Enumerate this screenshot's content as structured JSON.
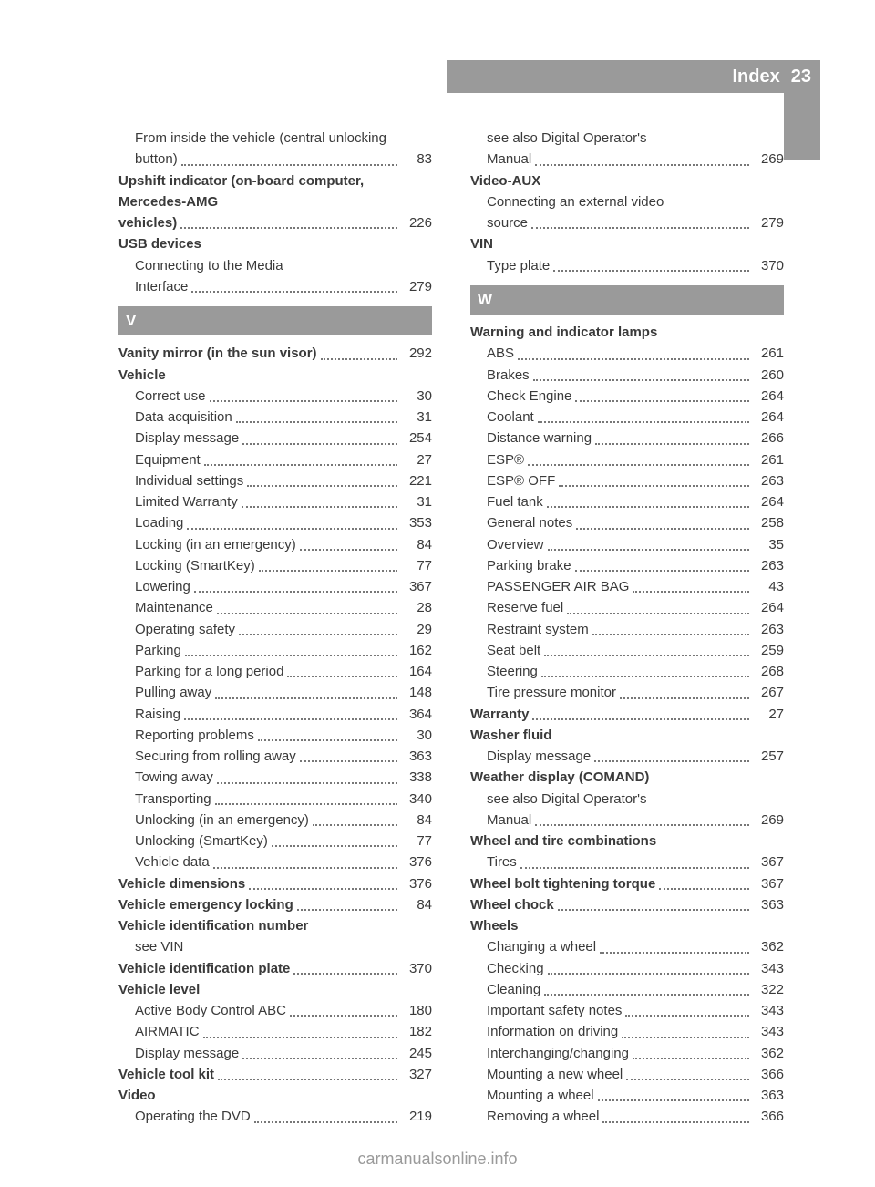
{
  "header": {
    "title": "Index",
    "page": "23"
  },
  "footer": "carmanualsonline.info",
  "colors": {
    "bar": "#9a9a9a",
    "text": "#3a3a3a",
    "bg": "#ffffff"
  },
  "left": [
    {
      "t": "sub-multi",
      "label": "From inside the vehicle (central unlocking button)",
      "pg": "83"
    },
    {
      "t": "multi-bold",
      "label": "Upshift indicator (on-board computer, Mercedes-AMG vehicles)",
      "pg": "226"
    },
    {
      "t": "head",
      "label": "USB devices"
    },
    {
      "t": "sub-multi",
      "label": "Connecting to the Media Interface",
      "pg": "279"
    },
    {
      "t": "letter",
      "label": "V"
    },
    {
      "t": "bold",
      "label": "Vanity mirror (in the sun visor)",
      "pg": "292"
    },
    {
      "t": "head",
      "label": "Vehicle"
    },
    {
      "t": "sub",
      "label": "Correct use",
      "pg": "30"
    },
    {
      "t": "sub",
      "label": "Data acquisition",
      "pg": "31"
    },
    {
      "t": "sub",
      "label": "Display message",
      "pg": "254"
    },
    {
      "t": "sub",
      "label": "Equipment",
      "pg": "27"
    },
    {
      "t": "sub",
      "label": "Individual settings",
      "pg": "221"
    },
    {
      "t": "sub",
      "label": "Limited Warranty",
      "pg": "31"
    },
    {
      "t": "sub",
      "label": "Loading",
      "pg": "353"
    },
    {
      "t": "sub",
      "label": "Locking (in an emergency)",
      "pg": "84"
    },
    {
      "t": "sub",
      "label": "Locking (SmartKey)",
      "pg": "77"
    },
    {
      "t": "sub",
      "label": "Lowering",
      "pg": "367"
    },
    {
      "t": "sub",
      "label": "Maintenance",
      "pg": "28"
    },
    {
      "t": "sub",
      "label": "Operating safety",
      "pg": "29"
    },
    {
      "t": "sub",
      "label": "Parking",
      "pg": "162"
    },
    {
      "t": "sub",
      "label": "Parking for a long period",
      "pg": "164"
    },
    {
      "t": "sub",
      "label": "Pulling away",
      "pg": "148"
    },
    {
      "t": "sub",
      "label": "Raising",
      "pg": "364"
    },
    {
      "t": "sub",
      "label": "Reporting problems",
      "pg": "30"
    },
    {
      "t": "sub",
      "label": "Securing from rolling away",
      "pg": "363"
    },
    {
      "t": "sub",
      "label": "Towing away",
      "pg": "338"
    },
    {
      "t": "sub",
      "label": "Transporting",
      "pg": "340"
    },
    {
      "t": "sub",
      "label": "Unlocking (in an emergency)",
      "pg": "84"
    },
    {
      "t": "sub",
      "label": "Unlocking (SmartKey)",
      "pg": "77"
    },
    {
      "t": "sub",
      "label": "Vehicle data",
      "pg": "376"
    },
    {
      "t": "bold",
      "label": "Vehicle dimensions",
      "pg": "376"
    },
    {
      "t": "bold",
      "label": "Vehicle emergency locking",
      "pg": "84"
    },
    {
      "t": "head",
      "label": "Vehicle identification number"
    },
    {
      "t": "subhead",
      "label": "see VIN"
    },
    {
      "t": "bold",
      "label": "Vehicle identification plate",
      "pg": "370"
    },
    {
      "t": "head",
      "label": "Vehicle level"
    },
    {
      "t": "sub",
      "label": "Active Body Control ABC",
      "pg": "180"
    },
    {
      "t": "sub",
      "label": "AIRMATIC",
      "pg": "182"
    },
    {
      "t": "sub",
      "label": "Display message",
      "pg": "245"
    },
    {
      "t": "bold",
      "label": "Vehicle tool kit",
      "pg": "327"
    },
    {
      "t": "head",
      "label": "Video"
    },
    {
      "t": "sub",
      "label": "Operating the DVD",
      "pg": "219"
    }
  ],
  "right": [
    {
      "t": "sub-multi",
      "label": "see also Digital Operator's Manual",
      "pg": "269"
    },
    {
      "t": "head",
      "label": "Video-AUX"
    },
    {
      "t": "sub-multi",
      "label": "Connecting an external video source",
      "pg": "279"
    },
    {
      "t": "head",
      "label": "VIN"
    },
    {
      "t": "sub",
      "label": "Type plate",
      "pg": "370"
    },
    {
      "t": "letter",
      "label": "W"
    },
    {
      "t": "head",
      "label": "Warning and indicator lamps"
    },
    {
      "t": "sub",
      "label": "ABS",
      "pg": "261"
    },
    {
      "t": "sub",
      "label": "Brakes",
      "pg": "260"
    },
    {
      "t": "sub",
      "label": "Check Engine",
      "pg": "264"
    },
    {
      "t": "sub",
      "label": "Coolant",
      "pg": "264"
    },
    {
      "t": "sub",
      "label": "Distance warning",
      "pg": "266"
    },
    {
      "t": "sub",
      "label": "ESP®",
      "pg": "261"
    },
    {
      "t": "sub",
      "label": "ESP® OFF",
      "pg": "263"
    },
    {
      "t": "sub",
      "label": "Fuel tank",
      "pg": "264"
    },
    {
      "t": "sub",
      "label": "General notes",
      "pg": "258"
    },
    {
      "t": "sub",
      "label": "Overview",
      "pg": "35"
    },
    {
      "t": "sub",
      "label": "Parking brake",
      "pg": "263"
    },
    {
      "t": "sub",
      "label": "PASSENGER AIR BAG",
      "pg": "43"
    },
    {
      "t": "sub",
      "label": "Reserve fuel",
      "pg": "264"
    },
    {
      "t": "sub",
      "label": "Restraint system",
      "pg": "263"
    },
    {
      "t": "sub",
      "label": "Seat belt",
      "pg": "259"
    },
    {
      "t": "sub",
      "label": "Steering",
      "pg": "268"
    },
    {
      "t": "sub",
      "label": "Tire pressure monitor",
      "pg": "267"
    },
    {
      "t": "bold",
      "label": "Warranty",
      "pg": "27"
    },
    {
      "t": "head",
      "label": "Washer fluid"
    },
    {
      "t": "sub",
      "label": "Display message",
      "pg": "257"
    },
    {
      "t": "head",
      "label": "Weather display (COMAND)"
    },
    {
      "t": "sub-multi",
      "label": "see also Digital Operator's Manual",
      "pg": "269"
    },
    {
      "t": "head",
      "label": "Wheel and tire combinations"
    },
    {
      "t": "sub",
      "label": "Tires",
      "pg": "367"
    },
    {
      "t": "bold",
      "label": "Wheel bolt tightening torque",
      "pg": "367"
    },
    {
      "t": "bold",
      "label": "Wheel chock",
      "pg": "363"
    },
    {
      "t": "head",
      "label": "Wheels"
    },
    {
      "t": "sub",
      "label": "Changing a wheel",
      "pg": "362"
    },
    {
      "t": "sub",
      "label": "Checking",
      "pg": "343"
    },
    {
      "t": "sub",
      "label": "Cleaning",
      "pg": "322"
    },
    {
      "t": "sub",
      "label": "Important safety notes",
      "pg": "343"
    },
    {
      "t": "sub",
      "label": "Information on driving",
      "pg": "343"
    },
    {
      "t": "sub",
      "label": "Interchanging/changing",
      "pg": "362"
    },
    {
      "t": "sub",
      "label": "Mounting a new wheel",
      "pg": "366"
    },
    {
      "t": "sub",
      "label": "Mounting a wheel",
      "pg": "363"
    },
    {
      "t": "sub",
      "label": "Removing a wheel",
      "pg": "366"
    }
  ]
}
